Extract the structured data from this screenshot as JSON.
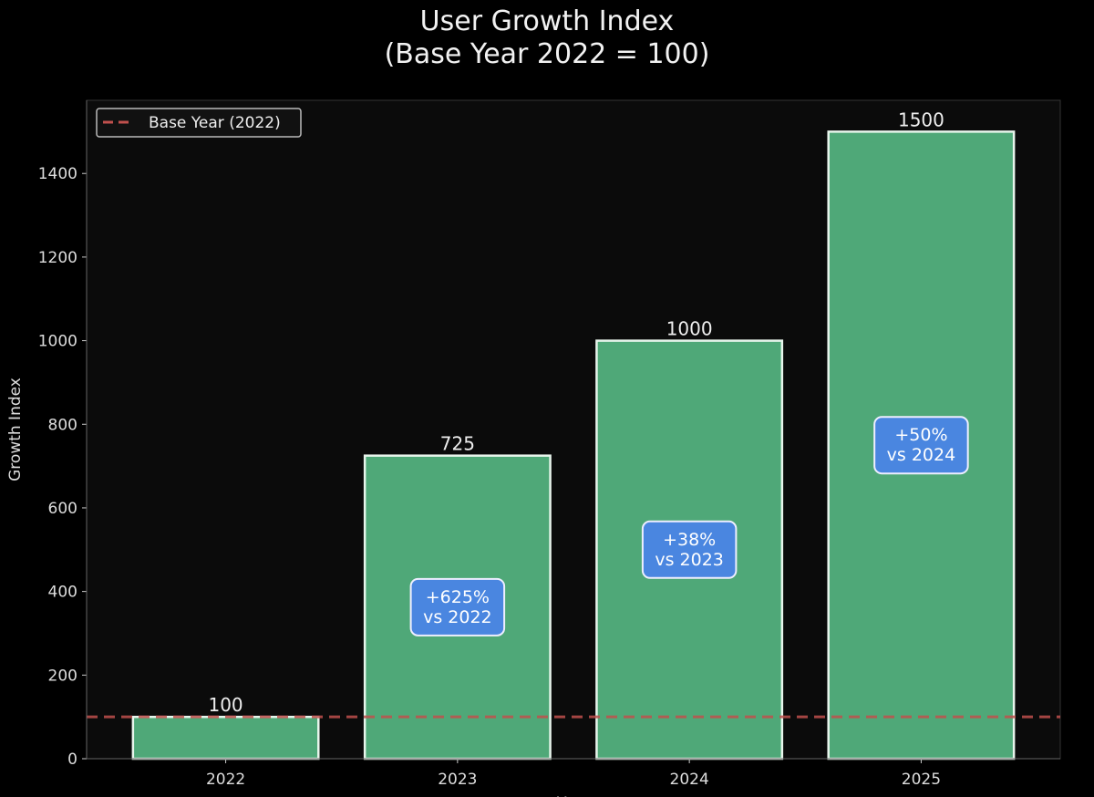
{
  "chart_data": {
    "type": "bar",
    "title": "User Growth Index\n(Base Year 2022 = 100)",
    "xlabel": "Year",
    "ylabel": "Growth Index",
    "categories": [
      "2022",
      "2023",
      "2024",
      "2025"
    ],
    "values": [
      100,
      725,
      1000,
      1500
    ],
    "data_labels": [
      "100",
      "725",
      "1000",
      "1500"
    ],
    "annotations": [
      {
        "category": "2023",
        "text": "+625%\nvs 2022"
      },
      {
        "category": "2024",
        "text": "+38%\nvs 2023"
      },
      {
        "category": "2025",
        "text": "+50%\nvs 2024"
      }
    ],
    "reference_line": {
      "y": 100,
      "label": "Base Year (2022)",
      "style": "dashed",
      "color": "#c0504d"
    },
    "yticks": [
      0,
      200,
      400,
      600,
      800,
      1000,
      1200,
      1400
    ],
    "ylim": [
      0,
      1575
    ],
    "grid": false,
    "legend_placement": "top-left",
    "colors": {
      "bar": "#4fa878",
      "bar_edge": "#e8f5ec",
      "annotation_box": "#4a86e0",
      "background": "#000000",
      "plot_background": "#0b0b0b"
    }
  }
}
